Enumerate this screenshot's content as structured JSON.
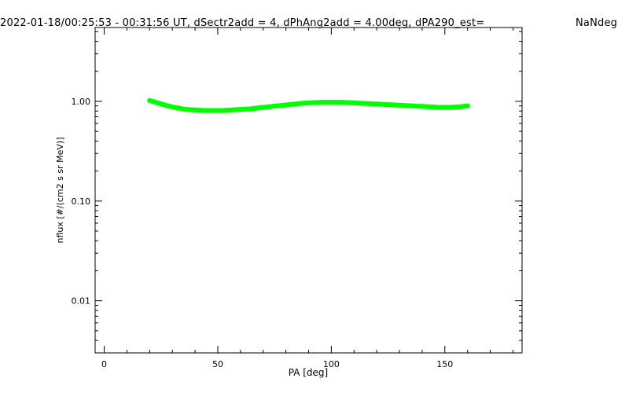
{
  "title_main": "2022-01-18/00:25:53 - 00:31:56 UT, dSectr2add = 4, dPhAng2add = 4.00deg, dPA290_est=",
  "title_tail": "NaNdeg",
  "chart_data": {
    "type": "scatter",
    "xlabel": "PA [deg]",
    "ylabel": "nflux [#/(cm2 s sr MeV)]",
    "xlim": [
      -4,
      184
    ],
    "ylim": [
      0.003,
      5.5
    ],
    "yscale": "log",
    "grid": false,
    "x_ticks": [
      0,
      50,
      100,
      150
    ],
    "x_tick_labels": [
      "0",
      "50",
      "100",
      "150"
    ],
    "y_ticks": [
      0.01,
      0.1,
      1.0
    ],
    "y_tick_labels": [
      "0.01",
      "0.10",
      "1.00"
    ],
    "series": [
      {
        "color": "#00ff00",
        "x": [
          20,
          24,
          28,
          32,
          36,
          40,
          44,
          48,
          52,
          56,
          60,
          64,
          68,
          72,
          76,
          80,
          84,
          88,
          92,
          96,
          100,
          104,
          108,
          112,
          116,
          120,
          124,
          128,
          132,
          136,
          140,
          144,
          148,
          152,
          156,
          160
        ],
        "y": [
          1.02,
          0.96,
          0.9,
          0.86,
          0.83,
          0.82,
          0.81,
          0.81,
          0.81,
          0.82,
          0.83,
          0.84,
          0.86,
          0.88,
          0.9,
          0.92,
          0.94,
          0.96,
          0.97,
          0.98,
          0.98,
          0.98,
          0.97,
          0.96,
          0.95,
          0.94,
          0.93,
          0.92,
          0.91,
          0.9,
          0.89,
          0.88,
          0.87,
          0.87,
          0.88,
          0.9
        ]
      }
    ]
  }
}
